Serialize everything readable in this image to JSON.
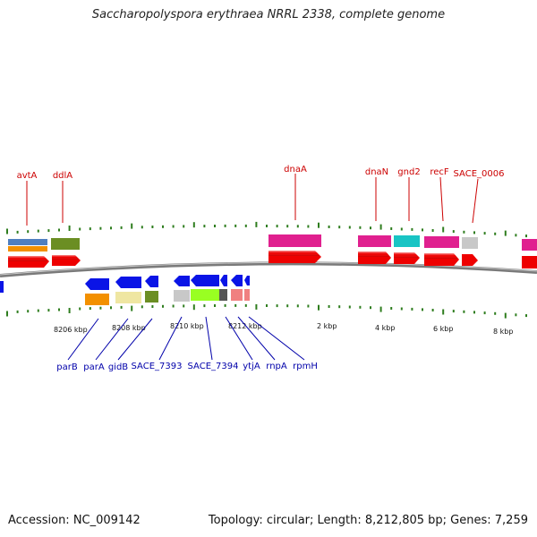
{
  "title": "Saccharopolyspora erythraea NRRL 2338, complete genome",
  "footer": {
    "accession": "Accession: NC_009142",
    "summary": "Topology: circular; Length: 8,212,805 bp; Genes: 7,259"
  },
  "colors": {
    "forward_label": "#cc0000",
    "reverse_label": "#0000aa",
    "tick": "#2e7d1e",
    "backbone": "#808080"
  },
  "scale_labels": [
    "8206 kbp",
    "8208 kbp",
    "8210 kbp",
    "8212 kbp",
    "2 kbp",
    "4 kbp",
    "6 kbp",
    "8 kbp"
  ],
  "forward_genes": [
    "avtA",
    "ddlA",
    "dnaA",
    "dnaN",
    "gnd2",
    "recF",
    "SACE_0006"
  ],
  "reverse_genes": [
    "parB",
    "parA",
    "gidB",
    "SACE_7393",
    "SACE_7394",
    "ytjA",
    "rnpA",
    "rpmH"
  ]
}
